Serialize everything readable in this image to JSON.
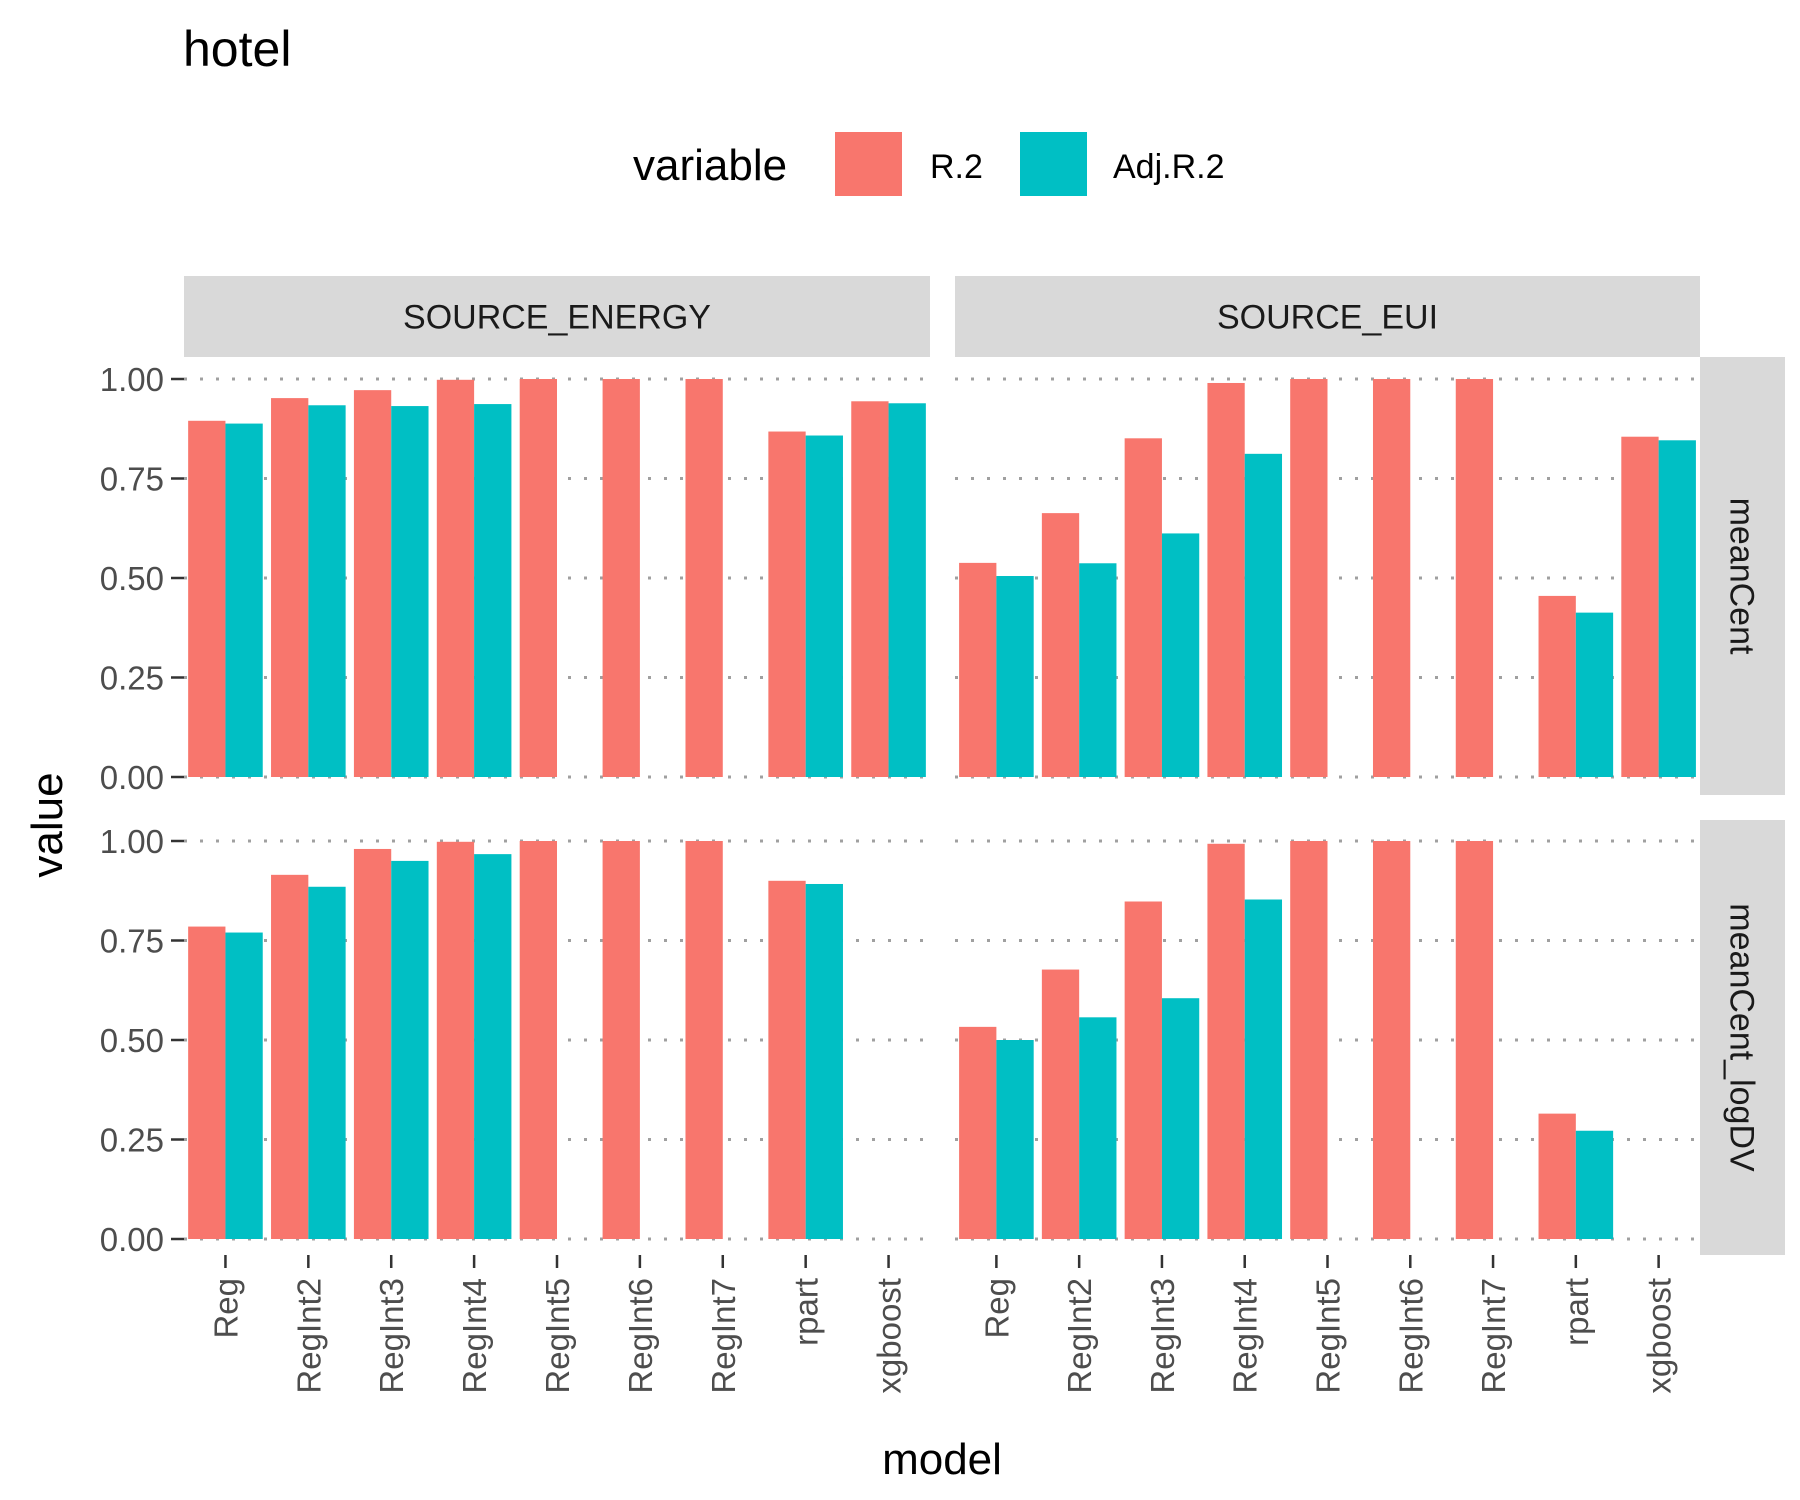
{
  "chart_data": {
    "type": "bar",
    "title": "hotel",
    "xlabel": "model",
    "ylabel": "value",
    "ylim": [
      0,
      1
    ],
    "yticks": [
      "0.00",
      "0.25",
      "0.50",
      "0.75",
      "1.00"
    ],
    "grid": "horizontal dotted",
    "legend": {
      "title": "variable",
      "position": "top",
      "entries": [
        {
          "name": "R.2",
          "color": "#F8766D"
        },
        {
          "name": "Adj.R.2",
          "color": "#00BFC4"
        }
      ]
    },
    "categories": [
      "Reg",
      "RegInt2",
      "RegInt3",
      "RegInt4",
      "RegInt5",
      "RegInt6",
      "RegInt7",
      "rpart",
      "xgboost"
    ],
    "facet_columns": [
      "SOURCE_ENERGY",
      "SOURCE_EUI"
    ],
    "facet_rows": [
      "meanCent",
      "meanCent_logDV"
    ],
    "panels": [
      {
        "col": "SOURCE_ENERGY",
        "row": "meanCent",
        "series": [
          {
            "name": "R.2",
            "values": [
              0.895,
              0.952,
              0.972,
              0.998,
              1.0,
              1.0,
              1.0,
              0.868,
              0.944
            ]
          },
          {
            "name": "Adj.R.2",
            "values": [
              0.888,
              0.934,
              0.932,
              0.937,
              null,
              null,
              null,
              0.858,
              0.939
            ]
          }
        ]
      },
      {
        "col": "SOURCE_EUI",
        "row": "meanCent",
        "series": [
          {
            "name": "R.2",
            "values": [
              0.538,
              0.663,
              0.851,
              0.99,
              1.0,
              1.0,
              1.0,
              0.455,
              0.855
            ]
          },
          {
            "name": "Adj.R.2",
            "values": [
              0.505,
              0.537,
              0.612,
              0.812,
              null,
              null,
              null,
              0.413,
              0.846
            ]
          }
        ]
      },
      {
        "col": "SOURCE_ENERGY",
        "row": "meanCent_logDV",
        "series": [
          {
            "name": "R.2",
            "values": [
              0.785,
              0.915,
              0.98,
              0.998,
              1.0,
              1.0,
              1.0,
              0.9,
              null
            ]
          },
          {
            "name": "Adj.R.2",
            "values": [
              0.77,
              0.885,
              0.95,
              0.967,
              null,
              null,
              null,
              0.892,
              null
            ]
          }
        ]
      },
      {
        "col": "SOURCE_EUI",
        "row": "meanCent_logDV",
        "series": [
          {
            "name": "R.2",
            "values": [
              0.533,
              0.677,
              0.848,
              0.993,
              1.0,
              1.0,
              1.0,
              0.315,
              null
            ]
          },
          {
            "name": "Adj.R.2",
            "values": [
              0.5,
              0.557,
              0.605,
              0.853,
              null,
              null,
              null,
              0.272,
              null
            ]
          }
        ]
      }
    ]
  }
}
